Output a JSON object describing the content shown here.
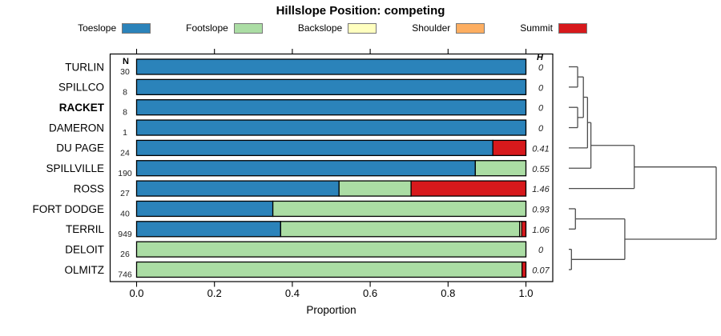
{
  "chart_data": {
    "type": "bar",
    "orientation": "horizontal",
    "stacked": true,
    "title": "Hillslope Position: competing",
    "axis": {
      "xlabel": "Proportion",
      "xlim": [
        0,
        1
      ],
      "tick_values": [
        0,
        0.2,
        0.4,
        0.6,
        0.8,
        1.0
      ],
      "tick_labels": [
        "0.0",
        "0.2",
        "0.4",
        "0.6",
        "0.8",
        "1.0"
      ]
    },
    "legend": [
      {
        "label": "Toeslope",
        "color": "#2B83BA"
      },
      {
        "label": "Footslope",
        "color": "#ABDDA4"
      },
      {
        "label": "Backslope",
        "color": "#FFFFBF"
      },
      {
        "label": "Shoulder",
        "color": "#FDAE61"
      },
      {
        "label": "Summit",
        "color": "#D7191C"
      }
    ],
    "columns": {
      "n_header": "N",
      "h_header": "H"
    },
    "rows": [
      {
        "label": "TURLIN",
        "n": "30",
        "shannon_h": "0",
        "bold": false,
        "segments": [
          {
            "name": "Toeslope",
            "value": 1.0
          }
        ]
      },
      {
        "label": "SPILLCO",
        "n": "8",
        "shannon_h": "0",
        "bold": false,
        "segments": [
          {
            "name": "Toeslope",
            "value": 1.0
          }
        ]
      },
      {
        "label": "RACKET",
        "n": "8",
        "shannon_h": "0",
        "bold": true,
        "segments": [
          {
            "name": "Toeslope",
            "value": 1.0
          }
        ]
      },
      {
        "label": "DAMERON",
        "n": "1",
        "shannon_h": "0",
        "bold": false,
        "segments": [
          {
            "name": "Toeslope",
            "value": 1.0
          }
        ]
      },
      {
        "label": "DU PAGE",
        "n": "24",
        "shannon_h": "0.41",
        "bold": false,
        "segments": [
          {
            "name": "Toeslope",
            "value": 0.915
          },
          {
            "name": "Summit",
            "value": 0.085
          }
        ]
      },
      {
        "label": "SPILLVILLE",
        "n": "190",
        "shannon_h": "0.55",
        "bold": false,
        "segments": [
          {
            "name": "Toeslope",
            "value": 0.87
          },
          {
            "name": "Footslope",
            "value": 0.13
          }
        ]
      },
      {
        "label": "ROSS",
        "n": "27",
        "shannon_h": "1.46",
        "bold": false,
        "segments": [
          {
            "name": "Toeslope",
            "value": 0.52
          },
          {
            "name": "Footslope",
            "value": 0.185
          },
          {
            "name": "Summit",
            "value": 0.295
          }
        ]
      },
      {
        "label": "FORT DODGE",
        "n": "40",
        "shannon_h": "0.93",
        "bold": false,
        "segments": [
          {
            "name": "Toeslope",
            "value": 0.35
          },
          {
            "name": "Footslope",
            "value": 0.65
          }
        ]
      },
      {
        "label": "TERRIL",
        "n": "949",
        "shannon_h": "1.06",
        "bold": false,
        "segments": [
          {
            "name": "Toeslope",
            "value": 0.37
          },
          {
            "name": "Footslope",
            "value": 0.614
          },
          {
            "name": "Backslope",
            "value": 0.005
          },
          {
            "name": "Summit",
            "value": 0.011
          }
        ]
      },
      {
        "label": "DELOIT",
        "n": "26",
        "shannon_h": "0",
        "bold": false,
        "segments": [
          {
            "name": "Footslope",
            "value": 1.0
          }
        ]
      },
      {
        "label": "OLMITZ",
        "n": "746",
        "shannon_h": "0.07",
        "bold": false,
        "segments": [
          {
            "name": "Footslope",
            "value": 0.99
          },
          {
            "name": "Summit",
            "value": 0.01
          }
        ]
      }
    ],
    "dendrogram": {
      "height": 1.0,
      "children": [
        {
          "height": 0.444,
          "children": [
            {
              "height": 0.15,
              "children": [
                {
                  "height": 0.127,
                  "children": [
                    {
                      "height": 0.099,
                      "children": [
                        {
                          "height": 0.06,
                          "children": [
                            "TURLIN",
                            "SPILLCO"
                          ]
                        },
                        {
                          "height": 0.06,
                          "children": [
                            "RACKET",
                            "DAMERON"
                          ]
                        }
                      ]
                    },
                    "DU PAGE"
                  ]
                },
                "SPILLVILLE"
              ]
            },
            "ROSS"
          ]
        },
        {
          "height": 0.38,
          "children": [
            {
              "height": 0.045,
              "children": [
                "FORT DODGE",
                "TERRIL"
              ]
            },
            {
              "height": 0.018,
              "children": [
                "DELOIT",
                "OLMITZ"
              ]
            }
          ]
        }
      ]
    }
  }
}
